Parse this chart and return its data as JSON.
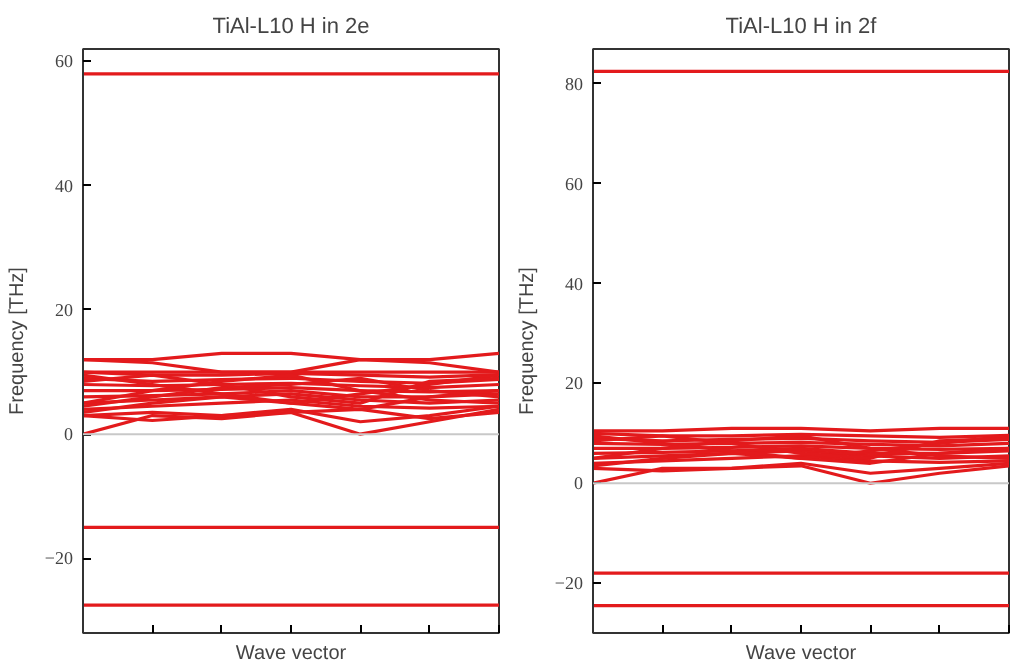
{
  "chart_data": [
    {
      "type": "line",
      "title": "TiAl-L10 H in 2e",
      "xlabel": "Wave vector",
      "ylabel": "Frequency [THz]",
      "categories": [
        null,
        null,
        null,
        null,
        null,
        null,
        null
      ],
      "ylim": [
        -32,
        62
      ],
      "yticks": [
        -20,
        0,
        20,
        40,
        60
      ],
      "grid": false,
      "ref_lines": [
        {
          "axis": "y",
          "value": 0,
          "color": "#c8c8c8"
        }
      ],
      "series": [
        {
          "color": "#e31a1c",
          "values": [
            58,
            58,
            58,
            58,
            58,
            58,
            58
          ]
        },
        {
          "color": "#e31a1c",
          "values": [
            -15,
            -15,
            -15,
            -15,
            -15,
            -15,
            -15
          ]
        },
        {
          "color": "#e31a1c",
          "values": [
            -27.5,
            -27.5,
            -27.5,
            -27.5,
            -27.5,
            -27.5,
            -27.5
          ]
        },
        {
          "color": "#e31a1c",
          "values": [
            12,
            12,
            13,
            13,
            12,
            12,
            13
          ]
        },
        {
          "color": "#e31a1c",
          "values": [
            12,
            11.5,
            10,
            10,
            12,
            11.5,
            10
          ]
        },
        {
          "color": "#e31a1c",
          "values": [
            0,
            3,
            2.5,
            3.5,
            0,
            2,
            4
          ]
        },
        {
          "color": "#e31a1c",
          "values": [
            3,
            2.2,
            3,
            4,
            2,
            3,
            4.5
          ]
        },
        {
          "color": "#e31a1c",
          "values": [
            3,
            3.5,
            3,
            3.5,
            4,
            2.5,
            3.5
          ]
        },
        {
          "color": "#e31a1c",
          "values": [
            4,
            4.5,
            5,
            5.5,
            4.5,
            4.2,
            4.5
          ]
        },
        {
          "color": "#e31a1c",
          "values": [
            5,
            5.5,
            6,
            6.5,
            5.5,
            5,
            5.5
          ]
        },
        {
          "color": "#e31a1c",
          "values": [
            6,
            6.2,
            6.5,
            7,
            6,
            6,
            6.5
          ]
        },
        {
          "color": "#e31a1c",
          "values": [
            7,
            7,
            7.2,
            7.5,
            7,
            6.8,
            7
          ]
        },
        {
          "color": "#e31a1c",
          "values": [
            8,
            7.8,
            8,
            8.2,
            7.8,
            7.5,
            8
          ]
        },
        {
          "color": "#e31a1c",
          "values": [
            9,
            8.5,
            8.8,
            9,
            8.5,
            8.2,
            8.8
          ]
        },
        {
          "color": "#e31a1c",
          "values": [
            10,
            9.5,
            9.5,
            9.8,
            9.5,
            9.2,
            9.6
          ]
        },
        {
          "color": "#e31a1c",
          "values": [
            10,
            10,
            10,
            10,
            10,
            10,
            10
          ]
        },
        {
          "color": "#e31a1c",
          "values": [
            3.5,
            5,
            6,
            5,
            4,
            6,
            7
          ]
        },
        {
          "color": "#e31a1c",
          "values": [
            9.5,
            8,
            6.5,
            5,
            6.5,
            8,
            9.5
          ]
        },
        {
          "color": "#e31a1c",
          "values": [
            5,
            7,
            8.5,
            9.5,
            7,
            5.5,
            5
          ]
        },
        {
          "color": "#e31a1c",
          "values": [
            4.5,
            6,
            7.5,
            8,
            9,
            7,
            6
          ]
        },
        {
          "color": "#e31a1c",
          "values": [
            8.5,
            9.5,
            8,
            6,
            5,
            8.5,
            9
          ]
        }
      ]
    },
    {
      "type": "line",
      "title": "TiAl-L10 H in 2f",
      "xlabel": "Wave vector",
      "ylabel": "Frequency [THz]",
      "categories": [
        null,
        null,
        null,
        null,
        null,
        null,
        null
      ],
      "ylim": [
        -30,
        87
      ],
      "yticks": [
        -20,
        0,
        20,
        40,
        60,
        80
      ],
      "grid": false,
      "ref_lines": [
        {
          "axis": "y",
          "value": 0,
          "color": "#c8c8c8"
        }
      ],
      "series": [
        {
          "color": "#e31a1c",
          "values": [
            82.5,
            82.5,
            82.5,
            82.5,
            82.5,
            82.5,
            82.5
          ]
        },
        {
          "color": "#e31a1c",
          "values": [
            -18,
            -18,
            -18,
            -18,
            -18,
            -18,
            -18
          ]
        },
        {
          "color": "#e31a1c",
          "values": [
            -24.5,
            -24.5,
            -24.5,
            -24.5,
            -24.5,
            -24.5,
            -24.5
          ]
        },
        {
          "color": "#e31a1c",
          "values": [
            10.5,
            10.5,
            11,
            11,
            10.5,
            11,
            11
          ]
        },
        {
          "color": "#e31a1c",
          "values": [
            0,
            3,
            3,
            3.5,
            0,
            2,
            3.5
          ]
        },
        {
          "color": "#e31a1c",
          "values": [
            3,
            2.5,
            3,
            4,
            2,
            3,
            4
          ]
        },
        {
          "color": "#e31a1c",
          "values": [
            4,
            4.5,
            5,
            5.5,
            4.5,
            4.2,
            4.5
          ]
        },
        {
          "color": "#e31a1c",
          "values": [
            5,
            5.5,
            6,
            6.5,
            5.5,
            5,
            5.5
          ]
        },
        {
          "color": "#e31a1c",
          "values": [
            6,
            6.2,
            6.5,
            7,
            6,
            6,
            6.5
          ]
        },
        {
          "color": "#e31a1c",
          "values": [
            7,
            7,
            7.2,
            7.5,
            7,
            6.8,
            7
          ]
        },
        {
          "color": "#e31a1c",
          "values": [
            8,
            7.8,
            8,
            8.2,
            7.8,
            7.5,
            8
          ]
        },
        {
          "color": "#e31a1c",
          "values": [
            9,
            8.5,
            8.8,
            9,
            8.5,
            8.2,
            8.8
          ]
        },
        {
          "color": "#e31a1c",
          "values": [
            10,
            9.5,
            9.5,
            9.8,
            9.5,
            9.2,
            9.6
          ]
        },
        {
          "color": "#e31a1c",
          "values": [
            3.5,
            5,
            6,
            5,
            4,
            6,
            7
          ]
        },
        {
          "color": "#e31a1c",
          "values": [
            9.5,
            8,
            6.5,
            5,
            6.5,
            8,
            9.5
          ]
        },
        {
          "color": "#e31a1c",
          "values": [
            5,
            7,
            8.5,
            9.5,
            7,
            5.5,
            5
          ]
        },
        {
          "color": "#e31a1c",
          "values": [
            8.5,
            9.5,
            8,
            6,
            5,
            8.5,
            9
          ]
        }
      ]
    }
  ]
}
